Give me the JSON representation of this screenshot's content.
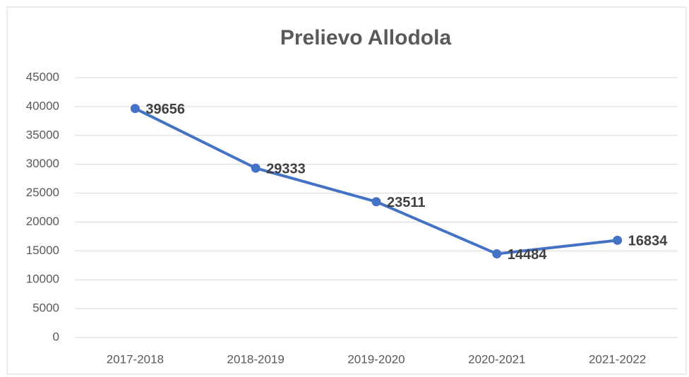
{
  "chart_data": {
    "type": "line",
    "title": "Prelievo Allodola",
    "categories": [
      "2017-2018",
      "2018-2019",
      "2019-2020",
      "2020-2021",
      "2021-2022"
    ],
    "values": [
      39656,
      29333,
      23511,
      14484,
      16834
    ],
    "color": "#4472c4",
    "ylim": [
      0,
      45000
    ],
    "yticks": [
      0,
      5000,
      10000,
      15000,
      20000,
      25000,
      30000,
      35000,
      40000,
      45000
    ],
    "grid": true
  }
}
